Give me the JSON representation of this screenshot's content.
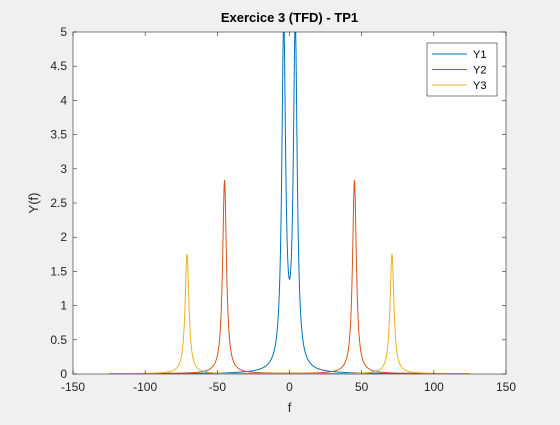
{
  "chart_data": {
    "type": "line",
    "title": "Exercice 3 (TFD) - TP1",
    "xlabel": "f",
    "ylabel": "Y(f)",
    "xlim": [
      -150,
      150
    ],
    "ylim": [
      0,
      5
    ],
    "xticks": [
      -150,
      -100,
      -50,
      0,
      50,
      100,
      150
    ],
    "yticks": [
      0,
      0.5,
      1,
      1.5,
      2,
      2.5,
      3,
      3.5,
      4,
      4.5,
      5
    ],
    "xtick_labels": [
      "-150",
      "-100",
      "-50",
      "0",
      "50",
      "100",
      "150"
    ],
    "ytick_labels": [
      "0",
      "0.5",
      "1",
      "1.5",
      "2",
      "2.5",
      "3",
      "3.5",
      "4",
      "4.5",
      "5"
    ],
    "grid": false,
    "legend_position": "top-right",
    "x_range_of_data": [
      -125,
      125
    ],
    "series": [
      {
        "name": "Y1",
        "color": "#0072BD",
        "peaks": [
          {
            "f": -4,
            "y": 5
          },
          {
            "f": 4,
            "y": 5
          }
        ]
      },
      {
        "name": "Y2",
        "color": "#D95319",
        "peaks": [
          {
            "f": -45,
            "y": 2.83
          },
          {
            "f": 45,
            "y": 2.83
          }
        ]
      },
      {
        "name": "Y3",
        "color": "#EDB120",
        "peaks": [
          {
            "f": -71,
            "y": 1.75
          },
          {
            "f": 71,
            "y": 1.75
          }
        ]
      }
    ]
  }
}
